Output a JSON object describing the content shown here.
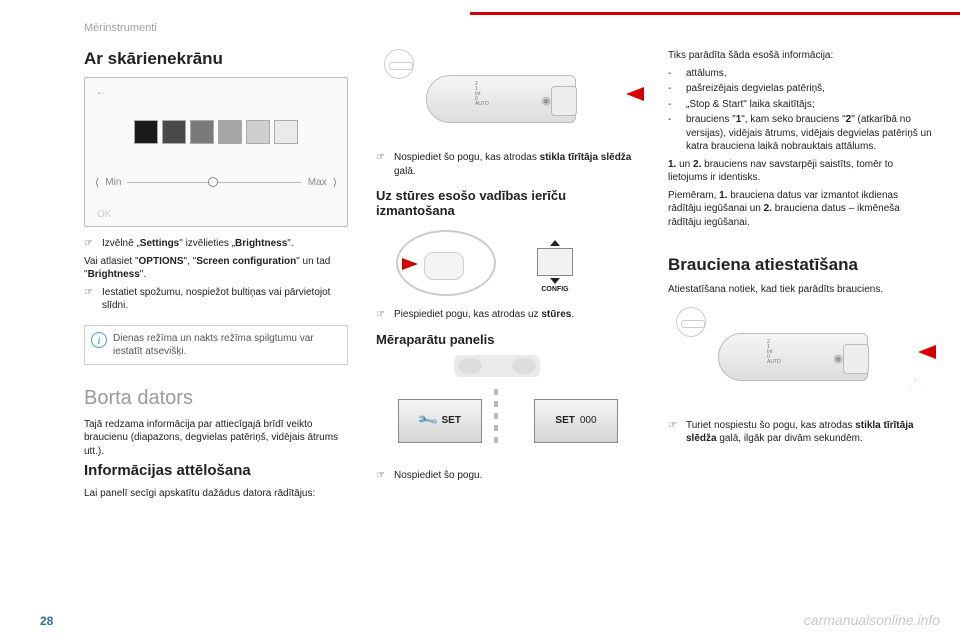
{
  "chapter": "Mērinstrumenti",
  "page_number": "28",
  "watermark": "carmanualsonline.info",
  "col1": {
    "h1": "Ar skārienekrānu",
    "back_glyph": "←",
    "slider_min": "Min",
    "slider_max": "Max",
    "ok": "OK",
    "swatch_colors": [
      "#1a1a1a",
      "#4a4a4a",
      "#7a7a7a",
      "#a5a5a5",
      "#cfcfcf",
      "#eaeaea"
    ],
    "p1a": "Izvēlnē „",
    "p1b": "Settings",
    "p1c": "\" izvēlieties „",
    "p1d": "Brightness",
    "p1e": "\".",
    "p2a": "Vai atlasiet \"",
    "p2b": "OPTIONS",
    "p2c": "\", \"",
    "p2d": "Screen configuration",
    "p2e": "\" un tad \"",
    "p2f": "Brightness",
    "p2g": "\".",
    "p3": "Iestatiet spožumu, nospiežot bultiņas vai pārvietojot slīdni.",
    "info": "Dienas režīma un nakts režīma spilgtumu var iestatīt atsevišķi.",
    "h2": "Borta dators",
    "p4": "Tajā redzama informācija par attiecīgajā brīdī veikto braucienu (diapazons, degvielas patēriņš, vidējais ātrums utt.).",
    "h3": "Informācijas attēlošana",
    "p5": "Lai panelī secīgi apskatītu dažādus datora rādītājus:"
  },
  "col2": {
    "stalk_dial": "2\n1\nInt\n0\nAUTO",
    "b1a": "Nospiediet šo pogu, kas atrodas ",
    "b1b": "stikla tīrītāja slēdža",
    "b1c": " galā.",
    "h3a": "Uz stūres esošo vadības ierīču izmantošana",
    "config": "CONFIG",
    "b2a": "Piespiediet pogu, kas atrodas uz ",
    "b2b": "stūres",
    "b2c": ".",
    "h3b": "Mēraparātu panelis",
    "set": "SET",
    "set000": "000",
    "b3": "Nospiediet šo pogu."
  },
  "col3": {
    "intro": "Tiks parādīta šāda esošā informācija:",
    "li1": "attālums,",
    "li2": "pašreizējais degvielas patēriņš,",
    "li3": "„Stop & Start\" laika skaitītājs;",
    "li4a": "brauciens \"",
    "li4b": "1",
    "li4c": "\", kam seko brauciens \"",
    "li4d": "2",
    "li4e": "\" (atkarībā no versijas), vidējais ātrums, vidējais degvielas patēriņš un katra brauciena laikā nobrauktais attālums.",
    "p1a": "1.",
    "p1b": " un ",
    "p1c": "2.",
    "p1d": " brauciens nav savstarpēji saistīts, tomēr to lietojums ir identisks.",
    "p2a": "Piemēram, ",
    "p2b": "1.",
    "p2c": " brauciena datus var izmantot ikdienas rādītāju iegūšanai un ",
    "p2d": "2.",
    "p2e": " brauciena datus – ikmēneša rādītāju iegūšanai.",
    "h1": "Brauciena atiestatīšana",
    "p3": "Atiestatīšana notiek, kad tiek parādīts brauciens.",
    "badge": "+2s",
    "b1a": "Turiet nospiestu šo pogu, kas atrodas ",
    "b1b": "stikla tīrītāja slēdža",
    "b1c": " galā, ilgāk par divām sekundēm."
  }
}
